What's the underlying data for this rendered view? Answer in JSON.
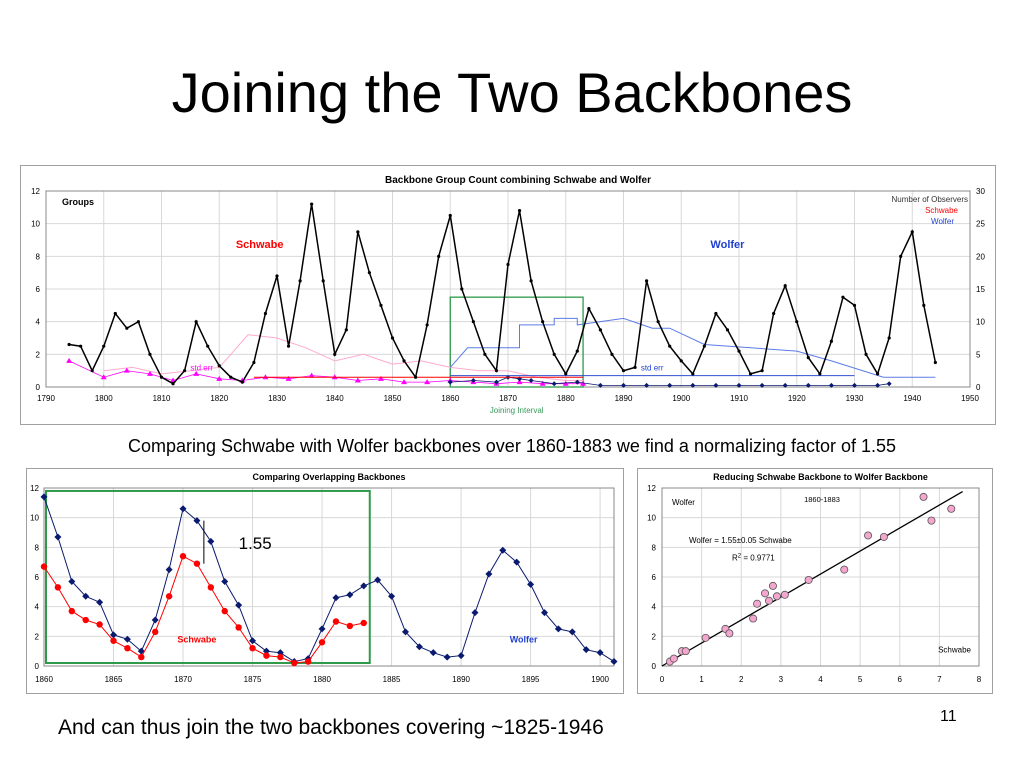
{
  "slide": {
    "title": "Joining the Two Backbones",
    "caption_top": "Comparing Schwabe with Wolfer backbones over 1860-1883 we find a normalizing factor of 1.55",
    "caption_bottom": "And can thus join the two backbones covering ~1825-1946",
    "page_number": "11"
  },
  "colors": {
    "black_series": "#000000",
    "wolfer_navy": "#0a1a6e",
    "schwabe_red": "#ff0000",
    "magenta": "#ff00ff",
    "pink": "#ffaad0",
    "blue": "#5b7ce6",
    "green_box": "#2e9a4a",
    "pink_point": "#f4a6cf"
  },
  "chart_data": [
    {
      "type": "line",
      "title": "Backbone Group Count combining Schwabe and Wolfer",
      "ylabel": "Groups",
      "xlim": [
        1790,
        1950
      ],
      "ylim": [
        0,
        12
      ],
      "y2lim": [
        0,
        30
      ],
      "x_ticks": [
        1790,
        1800,
        1810,
        1820,
        1830,
        1840,
        1850,
        1860,
        1870,
        1880,
        1890,
        1900,
        1910,
        1920,
        1930,
        1940,
        1950
      ],
      "y_ticks": [
        0,
        2,
        4,
        6,
        8,
        10,
        12
      ],
      "y2_ticks": [
        0,
        5,
        10,
        15,
        20,
        25,
        30
      ],
      "grid": true,
      "legend": [
        "Number of Observers",
        "Schwabe",
        "Wolfer"
      ],
      "legend_position": "top-right",
      "labels": {
        "schwabe": "Schwabe",
        "wolfer": "Wolfer",
        "std_err": "std err",
        "joining": "Joining Interval"
      },
      "joining_interval": [
        1860,
        1883
      ],
      "series": [
        {
          "name": "Joined backbone",
          "x": [
            1794,
            1796,
            1798,
            1800,
            1802,
            1804,
            1806,
            1808,
            1810,
            1812,
            1814,
            1816,
            1818,
            1820,
            1822,
            1824,
            1826,
            1828,
            1830,
            1832,
            1834,
            1836,
            1838,
            1840,
            1842,
            1844,
            1846,
            1848,
            1850,
            1852,
            1854,
            1856,
            1858,
            1860,
            1862,
            1864,
            1866,
            1868,
            1870,
            1872,
            1874,
            1876,
            1878,
            1880,
            1882,
            1884,
            1886,
            1888,
            1890,
            1892,
            1894,
            1896,
            1898,
            1900,
            1902,
            1904,
            1906,
            1908,
            1910,
            1912,
            1914,
            1916,
            1918,
            1920,
            1922,
            1924,
            1926,
            1928,
            1930,
            1932,
            1934,
            1936,
            1938,
            1940,
            1942,
            1944
          ],
          "values": [
            2.6,
            2.5,
            1.0,
            2.5,
            4.5,
            3.6,
            4.0,
            2.0,
            0.6,
            0.2,
            1.0,
            4.0,
            2.5,
            1.3,
            0.6,
            0.3,
            1.5,
            4.5,
            6.8,
            2.5,
            6.5,
            11.2,
            6.5,
            2.0,
            3.5,
            9.5,
            7.0,
            5.0,
            3.0,
            1.6,
            0.6,
            3.8,
            8.0,
            10.5,
            6.0,
            4.0,
            2.0,
            1.0,
            7.5,
            10.8,
            6.5,
            4.0,
            2.0,
            0.8,
            2.2,
            4.8,
            3.5,
            2.0,
            1.0,
            1.2,
            6.5,
            4.0,
            2.5,
            1.6,
            0.8,
            2.5,
            4.5,
            3.5,
            2.2,
            0.8,
            1.0,
            4.5,
            6.2,
            4.0,
            1.8,
            0.8,
            2.8,
            5.5,
            5.0,
            2.0,
            0.8,
            3.0,
            8.0,
            9.5,
            5.0,
            1.5
          ]
        },
        {
          "name": "Schwabe std err",
          "x": [
            1794,
            1800,
            1804,
            1808,
            1812,
            1816,
            1820,
            1824,
            1828,
            1832,
            1836,
            1840,
            1844,
            1848,
            1852,
            1856,
            1860,
            1864,
            1868,
            1872,
            1876,
            1880,
            1883
          ],
          "values": [
            1.6,
            0.6,
            1.0,
            0.8,
            0.4,
            0.8,
            0.5,
            0.4,
            0.6,
            0.5,
            0.7,
            0.6,
            0.4,
            0.5,
            0.3,
            0.3,
            0.4,
            0.3,
            0.2,
            0.3,
            0.2,
            0.2,
            0.2
          ]
        },
        {
          "name": "Wolfer std err",
          "x": [
            1860,
            1864,
            1868,
            1870,
            1872,
            1874,
            1878,
            1882,
            1886,
            1890,
            1894,
            1898,
            1902,
            1906,
            1910,
            1914,
            1918,
            1922,
            1926,
            1930,
            1934,
            1936
          ],
          "values": [
            0.3,
            0.4,
            0.3,
            0.6,
            0.5,
            0.4,
            0.2,
            0.3,
            0.1,
            0.1,
            0.1,
            0.1,
            0.1,
            0.1,
            0.1,
            0.1,
            0.1,
            0.1,
            0.1,
            0.1,
            0.1,
            0.2
          ]
        },
        {
          "name": "Schwabe number of observers",
          "axis": "right",
          "x": [
            1800,
            1805,
            1810,
            1815,
            1820,
            1825,
            1830,
            1835,
            1840,
            1845,
            1850,
            1855,
            1860,
            1865,
            1870,
            1875,
            1880,
            1883
          ],
          "values": [
            2.5,
            3,
            2,
            2.5,
            3,
            8,
            7.5,
            6,
            4,
            5,
            3.5,
            4,
            3,
            2.5,
            2.5,
            1.5,
            1,
            1
          ]
        },
        {
          "name": "Wolfer number of observers",
          "axis": "right",
          "x": [
            1860,
            1863,
            1863,
            1872,
            1872,
            1878,
            1878,
            1882,
            1882,
            1890,
            1895,
            1898,
            1904,
            1920,
            1926,
            1935,
            1944
          ],
          "values": [
            3,
            6,
            6,
            6,
            9.5,
            9.5,
            10.5,
            10.5,
            9.5,
            10.5,
            9,
            9,
            6.5,
            5.5,
            4,
            1.5,
            1.5
          ]
        }
      ]
    },
    {
      "type": "line",
      "title": "Comparing Overlapping Backbones",
      "xlim": [
        1860,
        1901
      ],
      "ylim": [
        0,
        12
      ],
      "x_ticks": [
        1860,
        1865,
        1870,
        1875,
        1880,
        1885,
        1890,
        1895,
        1900
      ],
      "y_ticks": [
        0,
        2,
        4,
        6,
        8,
        10,
        12
      ],
      "grid": true,
      "annotation": "1.55",
      "labels": {
        "schwabe": "Schwabe",
        "wolfer": "Wolfer"
      },
      "overlap_box": [
        1860,
        1883
      ],
      "series": [
        {
          "name": "Wolfer",
          "x": [
            1860,
            1861,
            1862,
            1863,
            1864,
            1865,
            1866,
            1867,
            1868,
            1869,
            1870,
            1871,
            1872,
            1873,
            1874,
            1875,
            1876,
            1877,
            1878,
            1879,
            1880,
            1881,
            1882,
            1883,
            1884,
            1885,
            1886,
            1887,
            1888,
            1889,
            1890,
            1891,
            1892,
            1893,
            1894,
            1895,
            1896,
            1897,
            1898,
            1899,
            1900,
            1901
          ],
          "values": [
            11.4,
            8.7,
            5.7,
            4.7,
            4.3,
            2.1,
            1.8,
            1.0,
            3.1,
            6.5,
            10.6,
            9.8,
            8.4,
            5.7,
            4.1,
            1.7,
            1.0,
            0.9,
            0.3,
            0.5,
            2.5,
            4.6,
            4.8,
            5.4,
            5.8,
            4.7,
            2.3,
            1.3,
            0.9,
            0.6,
            0.7,
            3.6,
            6.2,
            7.8,
            7.0,
            5.5,
            3.6,
            2.5,
            2.3,
            1.1,
            0.9,
            0.3
          ]
        },
        {
          "name": "Schwabe",
          "x": [
            1860,
            1861,
            1862,
            1863,
            1864,
            1865,
            1866,
            1867,
            1868,
            1869,
            1870,
            1871,
            1872,
            1873,
            1874,
            1875,
            1876,
            1877,
            1878,
            1879,
            1880,
            1881,
            1882,
            1883
          ],
          "values": [
            6.7,
            5.3,
            3.7,
            3.1,
            2.8,
            1.7,
            1.2,
            0.6,
            2.3,
            4.7,
            7.4,
            6.9,
            5.3,
            3.7,
            2.6,
            1.2,
            0.7,
            0.6,
            0.2,
            0.3,
            1.6,
            3.0,
            2.7,
            2.9
          ]
        }
      ]
    },
    {
      "type": "scatter",
      "title": "Reducing Schwabe Backbone to Wolfer Backbone",
      "xlabel": "Schwabe",
      "ylabel": "Wolfer",
      "subtitle": "1860-1883",
      "fit_label": "Wolfer = 1.55±0.05 Schwabe",
      "r2_label": "R",
      "r2_sup": "2",
      "r2_value": " = 0.9771",
      "xlim": [
        0,
        8
      ],
      "ylim": [
        0,
        12
      ],
      "x_ticks": [
        0,
        1,
        2,
        3,
        4,
        5,
        6,
        7,
        8
      ],
      "y_ticks": [
        0,
        2,
        4,
        6,
        8,
        10,
        12
      ],
      "fit_slope": 1.55,
      "points": [
        [
          0.2,
          0.3
        ],
        [
          0.3,
          0.5
        ],
        [
          0.5,
          1.0
        ],
        [
          0.6,
          1.0
        ],
        [
          1.1,
          1.9
        ],
        [
          1.6,
          2.5
        ],
        [
          1.7,
          2.2
        ],
        [
          2.3,
          3.2
        ],
        [
          2.4,
          4.2
        ],
        [
          2.6,
          4.9
        ],
        [
          2.7,
          4.4
        ],
        [
          2.8,
          5.4
        ],
        [
          2.9,
          4.7
        ],
        [
          3.1,
          4.8
        ],
        [
          3.7,
          5.8
        ],
        [
          4.6,
          6.5
        ],
        [
          5.2,
          8.8
        ],
        [
          5.6,
          8.7
        ],
        [
          6.6,
          11.4
        ],
        [
          6.8,
          9.8
        ],
        [
          7.3,
          10.6
        ]
      ]
    }
  ]
}
